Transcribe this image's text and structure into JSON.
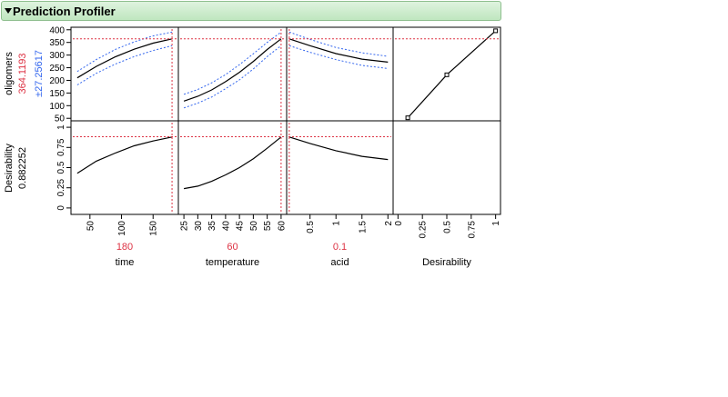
{
  "header": {
    "title": "Prediction Profiler"
  },
  "colors": {
    "current_value": "#dd3344",
    "ci_band": "#3366ee",
    "crosshair": "#dd3344",
    "line": "#000000"
  },
  "response": {
    "name": "oligomers",
    "value": "364.1193",
    "ci": "±27.25617"
  },
  "desirability_row": {
    "name": "Desirability",
    "value": "0.882252"
  },
  "factors": [
    {
      "name": "time",
      "current": "180"
    },
    {
      "name": "temperature",
      "current": "60"
    },
    {
      "name": "acid",
      "current": "0.1"
    },
    {
      "name": "Desirability",
      "current": ""
    }
  ],
  "chart_data": [
    {
      "type": "line",
      "title": "",
      "xlabel": "time",
      "ylabel": "oligomers",
      "xlim": [
        20,
        190
      ],
      "ylim": [
        40,
        410
      ],
      "xticks": [
        50,
        100,
        150
      ],
      "yticks": [
        50,
        100,
        150,
        200,
        250,
        300,
        350,
        400
      ],
      "current_x": 180,
      "current_y": 364.1193,
      "series": [
        {
          "x": [
            30,
            60,
            90,
            120,
            150,
            180
          ],
          "values": [
            210,
            255,
            293,
            323,
            347,
            364
          ]
        },
        {
          "x": [
            30,
            60,
            90,
            120,
            150,
            180
          ],
          "values": [
            235,
            282,
            322,
            352,
            376,
            391
          ]
        },
        {
          "x": [
            30,
            60,
            90,
            120,
            150,
            180
          ],
          "values": [
            182,
            228,
            264,
            294,
            318,
            337
          ]
        }
      ]
    },
    {
      "type": "line",
      "title": "",
      "xlabel": "temperature",
      "ylabel": "oligomers",
      "xlim": [
        23,
        62
      ],
      "ylim": [
        40,
        410
      ],
      "xticks": [
        25,
        30,
        35,
        40,
        45,
        50,
        55,
        60
      ],
      "yticks": [
        50,
        100,
        150,
        200,
        250,
        300,
        350,
        400
      ],
      "current_x": 60,
      "current_y": 364.1193,
      "series": [
        {
          "x": [
            25,
            30,
            35,
            40,
            45,
            50,
            55,
            60
          ],
          "values": [
            118,
            137,
            162,
            195,
            232,
            275,
            322,
            364
          ]
        },
        {
          "x": [
            25,
            30,
            35,
            40,
            45,
            50,
            55,
            60
          ],
          "values": [
            145,
            164,
            190,
            223,
            262,
            305,
            350,
            391
          ]
        },
        {
          "x": [
            25,
            30,
            35,
            40,
            45,
            50,
            55,
            60
          ],
          "values": [
            91,
            110,
            134,
            167,
            202,
            245,
            294,
            337
          ]
        }
      ]
    },
    {
      "type": "line",
      "title": "",
      "xlabel": "acid",
      "ylabel": "oligomers",
      "xlim": [
        0.05,
        2.1
      ],
      "ylim": [
        40,
        410
      ],
      "xticks": [
        0.5,
        1,
        1.5,
        2
      ],
      "yticks": [
        50,
        100,
        150,
        200,
        250,
        300,
        350,
        400
      ],
      "current_x": 0.1,
      "current_y": 364.1193,
      "series": [
        {
          "x": [
            0.1,
            0.5,
            1,
            1.5,
            2
          ],
          "values": [
            364,
            337,
            306,
            284,
            272
          ]
        },
        {
          "x": [
            0.1,
            0.5,
            1,
            1.5,
            2
          ],
          "values": [
            391,
            362,
            330,
            309,
            295
          ]
        },
        {
          "x": [
            0.1,
            0.5,
            1,
            1.5,
            2
          ],
          "values": [
            337,
            311,
            282,
            259,
            247
          ]
        }
      ]
    },
    {
      "type": "line",
      "title": "",
      "xlabel": "Desirability",
      "ylabel": "oligomers",
      "xlim": [
        -0.05,
        1.05
      ],
      "ylim": [
        40,
        410
      ],
      "xticks": [
        0,
        0.25,
        0.5,
        0.75,
        1
      ],
      "yticks": [
        50,
        100,
        150,
        200,
        250,
        300,
        350,
        400
      ],
      "current_y": 364.1193,
      "handles": [
        0.1,
        0.5,
        1
      ],
      "series": [
        {
          "x": [
            0.1,
            0.5,
            1
          ],
          "values": [
            52,
            222,
            396
          ]
        }
      ]
    },
    {
      "type": "line",
      "title": "",
      "xlabel": "time",
      "ylabel": "Desirability",
      "xlim": [
        20,
        190
      ],
      "ylim": [
        -0.08,
        1.08
      ],
      "xticks": [
        50,
        100,
        150
      ],
      "yticks": [
        0,
        0.25,
        0.5,
        0.75,
        1
      ],
      "current_x": 180,
      "current_y": 0.882252,
      "series": [
        {
          "x": [
            30,
            60,
            90,
            120,
            150,
            180
          ],
          "values": [
            0.43,
            0.58,
            0.68,
            0.77,
            0.83,
            0.88
          ]
        }
      ]
    },
    {
      "type": "line",
      "title": "",
      "xlabel": "temperature",
      "ylabel": "Desirability",
      "xlim": [
        23,
        62
      ],
      "ylim": [
        -0.08,
        1.08
      ],
      "xticks": [
        25,
        30,
        35,
        40,
        45,
        50,
        55,
        60
      ],
      "yticks": [
        0,
        0.25,
        0.5,
        0.75,
        1
      ],
      "current_x": 60,
      "current_y": 0.882252,
      "series": [
        {
          "x": [
            25,
            30,
            35,
            40,
            45,
            50,
            55,
            60
          ],
          "values": [
            0.24,
            0.27,
            0.33,
            0.41,
            0.5,
            0.61,
            0.74,
            0.88
          ]
        }
      ]
    },
    {
      "type": "line",
      "title": "",
      "xlabel": "acid",
      "ylabel": "Desirability",
      "xlim": [
        0.05,
        2.1
      ],
      "ylim": [
        -0.08,
        1.08
      ],
      "xticks": [
        0.5,
        1,
        1.5,
        2
      ],
      "yticks": [
        0,
        0.25,
        0.5,
        0.75,
        1
      ],
      "current_x": 0.1,
      "current_y": 0.882252,
      "series": [
        {
          "x": [
            0.1,
            0.5,
            1,
            1.5,
            2
          ],
          "values": [
            0.88,
            0.8,
            0.71,
            0.64,
            0.6
          ]
        }
      ]
    }
  ]
}
